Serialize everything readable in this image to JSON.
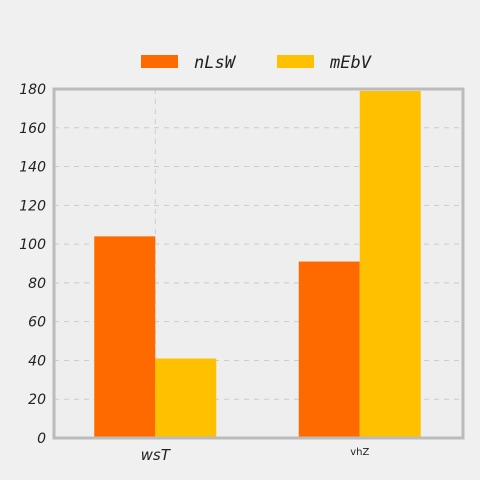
{
  "colors": {
    "background": "#f0f0f0",
    "plot_background": "#eeeeee",
    "axes_border": "#bbbbbb",
    "grid": "#cccccc"
  },
  "chart_data": {
    "type": "bar",
    "categories": [
      "wsT",
      "vhZ"
    ],
    "series": [
      {
        "name": "nLsW",
        "color": "#ff6a00",
        "values": [
          104,
          91
        ]
      },
      {
        "name": "mEbV",
        "color": "#ffc000",
        "values": [
          41,
          179
        ]
      }
    ],
    "title": "",
    "xlabel": "",
    "ylabel": "",
    "ylim": [
      0,
      180
    ],
    "yticks": [
      0,
      20,
      40,
      60,
      80,
      100,
      120,
      140,
      160,
      180
    ],
    "grid": true,
    "legend_position": "top"
  }
}
